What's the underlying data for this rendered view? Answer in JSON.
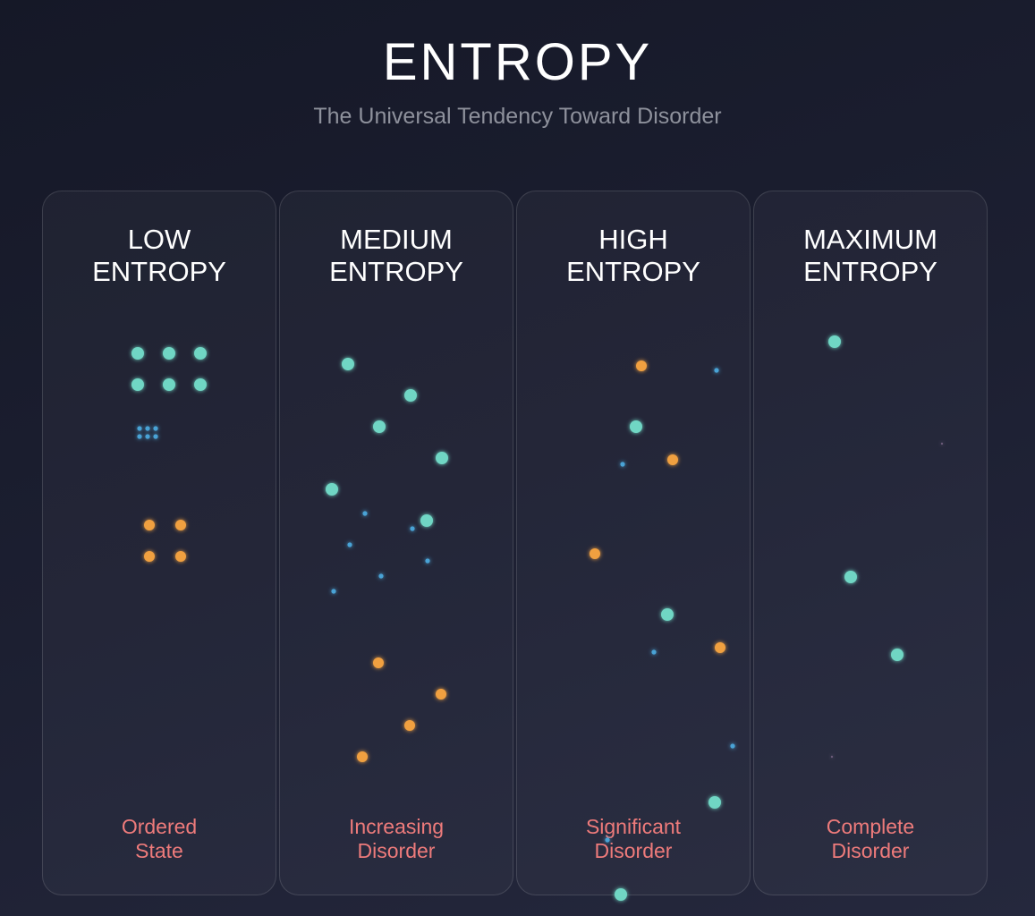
{
  "header": {
    "title": "ENTROPY",
    "subtitle": "The Universal Tendency Toward Disorder"
  },
  "panels": [
    {
      "heading": "LOW ENTROPY",
      "caption": "Ordered State"
    },
    {
      "heading": "MEDIUM ENTROPY",
      "caption": "Increasing Disorder"
    },
    {
      "heading": "HIGH ENTROPY",
      "caption": "Significant Disorder"
    },
    {
      "heading": "MAXIMUM ENTROPY",
      "caption": "Complete Disorder"
    }
  ]
}
